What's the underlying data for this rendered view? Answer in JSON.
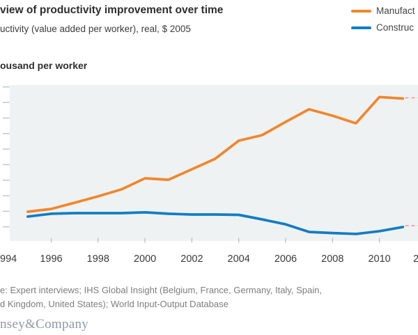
{
  "header": {
    "title": "view of productivity improvement over time",
    "subtitle": "uctivity (value added per worker), real, $ 2005",
    "axis_title": "ousand per worker"
  },
  "legend": {
    "items": [
      {
        "label": "Manufact",
        "color": "#F1862B"
      },
      {
        "label": "Construc",
        "color": "#117DC4"
      }
    ]
  },
  "chart_data": {
    "type": "line",
    "title": "view of productivity improvement over time",
    "subtitle": "uctivity (value added per worker), real, $ 2005",
    "ylabel": "ousand per worker",
    "x": [
      1995,
      1996,
      1997,
      1998,
      1999,
      2000,
      2001,
      2002,
      2003,
      2004,
      2005,
      2006,
      2007,
      2008,
      2009,
      2010,
      2011
    ],
    "series": [
      {
        "name": "Manufacturing",
        "color": "#F1862B",
        "values": [
          19.7,
          21.5,
          25.5,
          29.6,
          34.1,
          41.2,
          40.3,
          47.0,
          53.8,
          65.4,
          69.0,
          77.5,
          85.6,
          81.5,
          76.6,
          93.5,
          92.5
        ]
      },
      {
        "name": "Construction",
        "color": "#117DC4",
        "values": [
          16.6,
          18.4,
          18.8,
          18.8,
          18.8,
          19.3,
          18.4,
          17.9,
          17.9,
          17.7,
          14.8,
          11.6,
          6.7,
          6.0,
          5.4,
          7.2,
          9.9
        ]
      }
    ],
    "projection": {
      "style": "dashed",
      "color": "#F49C97",
      "levels": [
        {
          "series": "Manufacturing",
          "value": 93.0
        },
        {
          "series": "Construction",
          "value": 10.8
        }
      ]
    },
    "xlim": [
      1994,
      2012
    ],
    "ylim": [
      0,
      100
    ],
    "y_tick_step": 10,
    "y_tick_labels_visible": false,
    "x_tick_years": [
      1996,
      1998,
      2000,
      2002,
      2004,
      2006,
      2008,
      2010
    ],
    "x_tick_labels": [
      "994",
      "1996",
      "1998",
      "2000",
      "2002",
      "2004",
      "2006",
      "2008",
      "2010",
      "2"
    ],
    "plot_bg": "#EFF2F3",
    "tick_color": "#BCC3C6",
    "grid": false,
    "legend_position": "top-right"
  },
  "footer": {
    "source_line1": "e: Expert interviews; IHS Global Insight (Belgium, France, Germany, Italy, Spain,",
    "source_line2": "d Kingdom, United States); World Input-Output Database",
    "logo": "nsey&Company"
  }
}
